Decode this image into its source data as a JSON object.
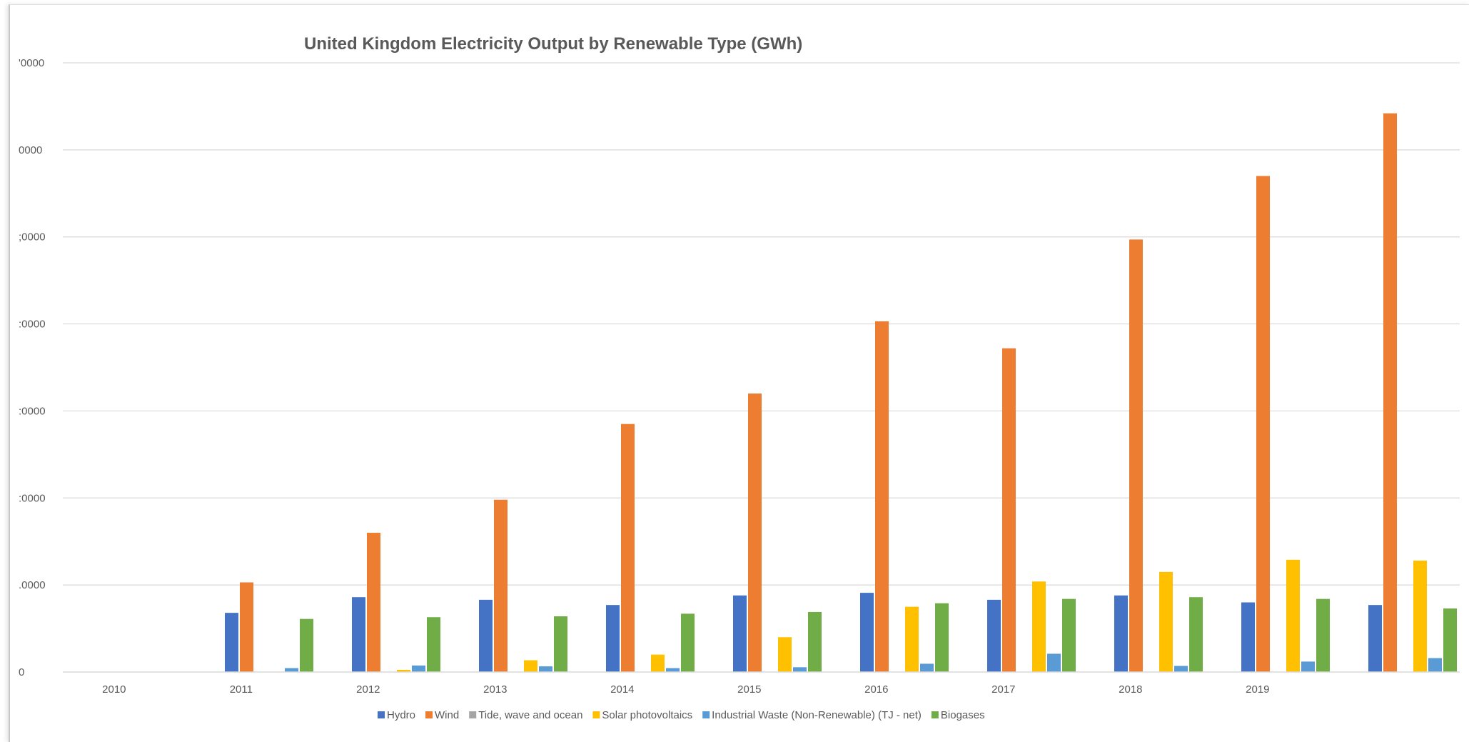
{
  "chart_data": {
    "type": "bar",
    "title": "United Kingdom Electricity Output by Renewable Type (GWh)",
    "y_tick_labels": [
      "0",
      ".0000",
      ":0000",
      ":0000",
      ":0000",
      ";0000",
      "0000",
      "'0000"
    ],
    "x_tick_labels": [
      "2010",
      "2011",
      "2012",
      "2013",
      "2014",
      "2015",
      "2016",
      "2017",
      "2018",
      "2019",
      ""
    ],
    "ylim": [
      0,
      70000
    ],
    "grid": true,
    "legend_position": "bottom",
    "series": [
      {
        "name": "Hydro",
        "color": "#4472c4",
        "values": [
          0,
          6800,
          8600,
          8300,
          7700,
          8800,
          9100,
          8300,
          8800,
          8000,
          7700
        ]
      },
      {
        "name": "Wind",
        "color": "#ed7d31",
        "values": [
          0,
          10300,
          16000,
          19800,
          28500,
          32000,
          40300,
          37200,
          49700,
          57000,
          64200
        ]
      },
      {
        "name": "Tide, wave and ocean",
        "color": "#a5a5a5",
        "values": [
          0,
          0,
          0,
          0,
          0,
          0,
          0,
          0,
          0,
          0,
          0
        ]
      },
      {
        "name": "Solar photovoltaics",
        "color": "#ffc000",
        "values": [
          0,
          0,
          250,
          1350,
          2000,
          4000,
          7500,
          10400,
          11500,
          12900,
          12800
        ]
      },
      {
        "name": "Industrial Waste (Non-Renewable) (TJ - net)",
        "color": "#5b9bd5",
        "values": [
          0,
          450,
          750,
          650,
          450,
          550,
          950,
          2100,
          700,
          1200,
          1600
        ]
      },
      {
        "name": "Biogases",
        "color": "#70ad47",
        "values": [
          0,
          6100,
          6300,
          6400,
          6700,
          6900,
          7900,
          8400,
          8600,
          8400,
          7300
        ]
      }
    ]
  }
}
